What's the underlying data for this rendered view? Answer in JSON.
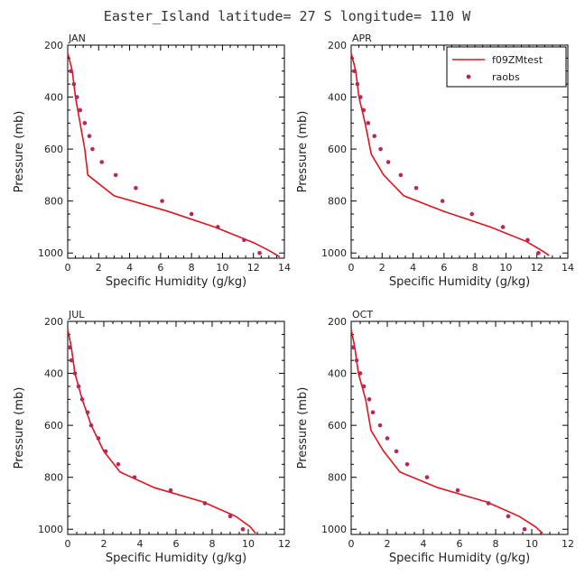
{
  "title": "Easter_Island  latitude= 27 S longitude= 110 W",
  "colors": {
    "model": "#e0141e",
    "obs": "#b4285a",
    "axis": "#000000"
  },
  "legend": {
    "model_label": "f09ZMtest",
    "obs_label": "raobs",
    "placement": "top-right of APR panel"
  },
  "chart_data": [
    {
      "type": "line",
      "panel": "JAN",
      "xlabel": "Specific Humidity (g/kg)",
      "ylabel": "Pressure (mb)",
      "xlim": [
        0,
        14
      ],
      "ylim": [
        1020,
        200
      ],
      "xticks": [
        0,
        2,
        4,
        6,
        8,
        10,
        12,
        14
      ],
      "yticks": [
        200,
        400,
        600,
        800,
        1000
      ],
      "series": [
        {
          "name": "f09ZMtest",
          "style": "line",
          "points": [
            [
              0.0,
              230
            ],
            [
              0.3,
              300
            ],
            [
              0.5,
              400
            ],
            [
              0.8,
              500
            ],
            [
              1.1,
              600
            ],
            [
              1.3,
              700
            ],
            [
              3.0,
              780
            ],
            [
              6.5,
              840
            ],
            [
              9.5,
              900
            ],
            [
              12.0,
              960
            ],
            [
              13.0,
              990
            ],
            [
              13.7,
              1015
            ]
          ]
        },
        {
          "name": "raobs",
          "style": "marker",
          "points": [
            [
              0.2,
              300
            ],
            [
              0.4,
              350
            ],
            [
              0.6,
              400
            ],
            [
              0.8,
              450
            ],
            [
              1.1,
              500
            ],
            [
              1.4,
              550
            ],
            [
              1.6,
              600
            ],
            [
              2.2,
              650
            ],
            [
              3.1,
              700
            ],
            [
              4.4,
              750
            ],
            [
              6.1,
              800
            ],
            [
              8.0,
              850
            ],
            [
              9.7,
              900
            ],
            [
              11.4,
              950
            ],
            [
              12.4,
              1000
            ]
          ]
        }
      ]
    },
    {
      "type": "line",
      "panel": "APR",
      "xlabel": "Specific Humidity (g/kg)",
      "ylabel": "Pressure (mb)",
      "xlim": [
        0,
        14
      ],
      "ylim": [
        1020,
        200
      ],
      "xticks": [
        0,
        2,
        4,
        6,
        8,
        10,
        12,
        14
      ],
      "yticks": [
        200,
        400,
        600,
        800,
        1000
      ],
      "series": [
        {
          "name": "f09ZMtest",
          "style": "line",
          "points": [
            [
              0.0,
              230
            ],
            [
              0.3,
              300
            ],
            [
              0.5,
              400
            ],
            [
              0.9,
              500
            ],
            [
              1.3,
              620
            ],
            [
              2.1,
              700
            ],
            [
              3.4,
              780
            ],
            [
              6.0,
              840
            ],
            [
              9.0,
              900
            ],
            [
              11.3,
              955
            ],
            [
              12.3,
              990
            ],
            [
              12.8,
              1010
            ]
          ]
        },
        {
          "name": "raobs",
          "style": "marker",
          "points": [
            [
              0.2,
              300
            ],
            [
              0.4,
              350
            ],
            [
              0.6,
              400
            ],
            [
              0.8,
              450
            ],
            [
              1.1,
              500
            ],
            [
              1.5,
              550
            ],
            [
              1.9,
              600
            ],
            [
              2.4,
              650
            ],
            [
              3.2,
              700
            ],
            [
              4.2,
              750
            ],
            [
              5.9,
              800
            ],
            [
              7.8,
              850
            ],
            [
              9.8,
              900
            ],
            [
              11.4,
              950
            ],
            [
              12.1,
              1000
            ]
          ]
        }
      ]
    },
    {
      "type": "line",
      "panel": "JUL",
      "xlabel": "Specific Humidity (g/kg)",
      "ylabel": "Pressure (mb)",
      "xlim": [
        0,
        12
      ],
      "ylim": [
        1020,
        200
      ],
      "xticks": [
        0,
        2,
        4,
        6,
        8,
        10,
        12
      ],
      "yticks": [
        200,
        400,
        600,
        800,
        1000
      ],
      "series": [
        {
          "name": "f09ZMtest",
          "style": "line",
          "points": [
            [
              0.0,
              230
            ],
            [
              0.2,
              300
            ],
            [
              0.4,
              400
            ],
            [
              0.8,
              500
            ],
            [
              1.3,
              600
            ],
            [
              2.0,
              700
            ],
            [
              2.9,
              780
            ],
            [
              4.8,
              840
            ],
            [
              7.5,
              895
            ],
            [
              9.3,
              950
            ],
            [
              10.1,
              990
            ],
            [
              10.4,
              1015
            ]
          ]
        },
        {
          "name": "raobs",
          "style": "marker",
          "points": [
            [
              0.1,
              300
            ],
            [
              0.2,
              350
            ],
            [
              0.4,
              400
            ],
            [
              0.6,
              450
            ],
            [
              0.8,
              500
            ],
            [
              1.1,
              550
            ],
            [
              1.3,
              600
            ],
            [
              1.7,
              650
            ],
            [
              2.1,
              700
            ],
            [
              2.8,
              750
            ],
            [
              3.7,
              800
            ],
            [
              5.7,
              850
            ],
            [
              7.6,
              900
            ],
            [
              9.0,
              950
            ],
            [
              9.7,
              1000
            ]
          ]
        }
      ]
    },
    {
      "type": "line",
      "panel": "OCT",
      "xlabel": "Specific Humidity (g/kg)",
      "ylabel": "Pressure (mb)",
      "xlim": [
        0,
        12
      ],
      "ylim": [
        1020,
        200
      ],
      "xticks": [
        0,
        2,
        4,
        6,
        8,
        10,
        12
      ],
      "yticks": [
        200,
        400,
        600,
        800,
        1000
      ],
      "series": [
        {
          "name": "f09ZMtest",
          "style": "line",
          "points": [
            [
              0.0,
              230
            ],
            [
              0.2,
              300
            ],
            [
              0.4,
              400
            ],
            [
              0.8,
              500
            ],
            [
              1.1,
              620
            ],
            [
              1.8,
              700
            ],
            [
              2.7,
              780
            ],
            [
              4.8,
              840
            ],
            [
              7.5,
              895
            ],
            [
              9.3,
              950
            ],
            [
              10.2,
              990
            ],
            [
              10.6,
              1015
            ]
          ]
        },
        {
          "name": "raobs",
          "style": "marker",
          "points": [
            [
              0.1,
              300
            ],
            [
              0.3,
              350
            ],
            [
              0.5,
              400
            ],
            [
              0.7,
              450
            ],
            [
              1.0,
              500
            ],
            [
              1.2,
              550
            ],
            [
              1.6,
              600
            ],
            [
              2.0,
              650
            ],
            [
              2.5,
              700
            ],
            [
              3.1,
              750
            ],
            [
              4.2,
              800
            ],
            [
              5.9,
              850
            ],
            [
              7.6,
              900
            ],
            [
              8.7,
              950
            ],
            [
              9.6,
              1000
            ]
          ]
        }
      ]
    }
  ]
}
